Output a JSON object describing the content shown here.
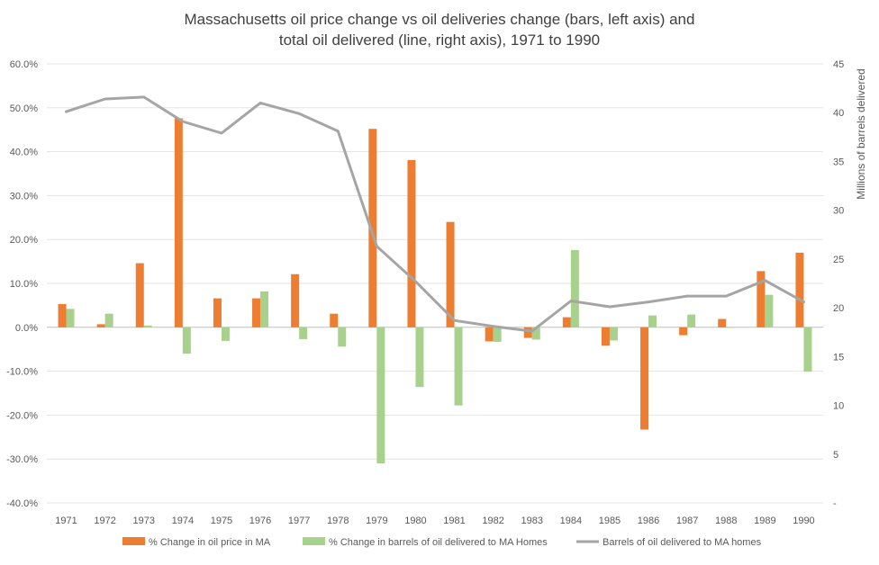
{
  "chart_data": {
    "type": "bar",
    "title_lines": [
      "Massachusetts oil price change vs oil deliveries change (bars, left axis) and",
      "total oil delivered (line, right axis), 1971 to 1990"
    ],
    "categories": [
      "1971",
      "1972",
      "1973",
      "1974",
      "1975",
      "1976",
      "1977",
      "1978",
      "1979",
      "1980",
      "1981",
      "1982",
      "1983",
      "1984",
      "1985",
      "1986",
      "1987",
      "1988",
      "1989",
      "1990"
    ],
    "left_axis": {
      "min": -40,
      "max": 60,
      "step": 10,
      "tick_labels": [
        "-40.0%",
        "-30.0%",
        "-20.0%",
        "-10.0%",
        "0.0%",
        "10.0%",
        "20.0%",
        "30.0%",
        "40.0%",
        "50.0%",
        "60.0%"
      ]
    },
    "right_axis": {
      "label": "Millions of barrels delivered",
      "min": 0,
      "max": 45,
      "step": 5,
      "tick_labels": [
        "-",
        "5",
        "10",
        "15",
        "20",
        "25",
        "30",
        "35",
        "40",
        "45"
      ]
    },
    "series": [
      {
        "name": "% Change in oil price in MA",
        "kind": "bar",
        "axis": "left",
        "color": "#ED7D31",
        "values": [
          5.3,
          0.7,
          14.6,
          47.6,
          6.6,
          6.6,
          12.1,
          3.1,
          45.2,
          38.1,
          24.0,
          -3.2,
          -2.4,
          2.3,
          -4.2,
          -23.3,
          -1.8,
          1.9,
          12.8,
          17.0
        ]
      },
      {
        "name": "% Change in barrels of oil delivered to MA Homes",
        "kind": "bar",
        "axis": "left",
        "color": "#A9D18E",
        "values": [
          4.2,
          3.1,
          0.4,
          -6.0,
          -3.1,
          8.2,
          -2.7,
          -4.4,
          -31.0,
          -13.6,
          -17.8,
          -3.3,
          -2.8,
          17.6,
          -3.0,
          2.7,
          2.9,
          0.0,
          7.4,
          -10.1
        ]
      },
      {
        "name": "Barrels of oil delivered to MA homes",
        "kind": "line",
        "axis": "right",
        "color": "#A5A5A5",
        "values": [
          40.1,
          41.4,
          41.6,
          39.1,
          37.9,
          41.0,
          39.9,
          38.1,
          26.3,
          22.7,
          18.7,
          18.1,
          17.6,
          20.7,
          20.1,
          20.6,
          21.2,
          21.2,
          22.8,
          20.6
        ]
      }
    ]
  }
}
